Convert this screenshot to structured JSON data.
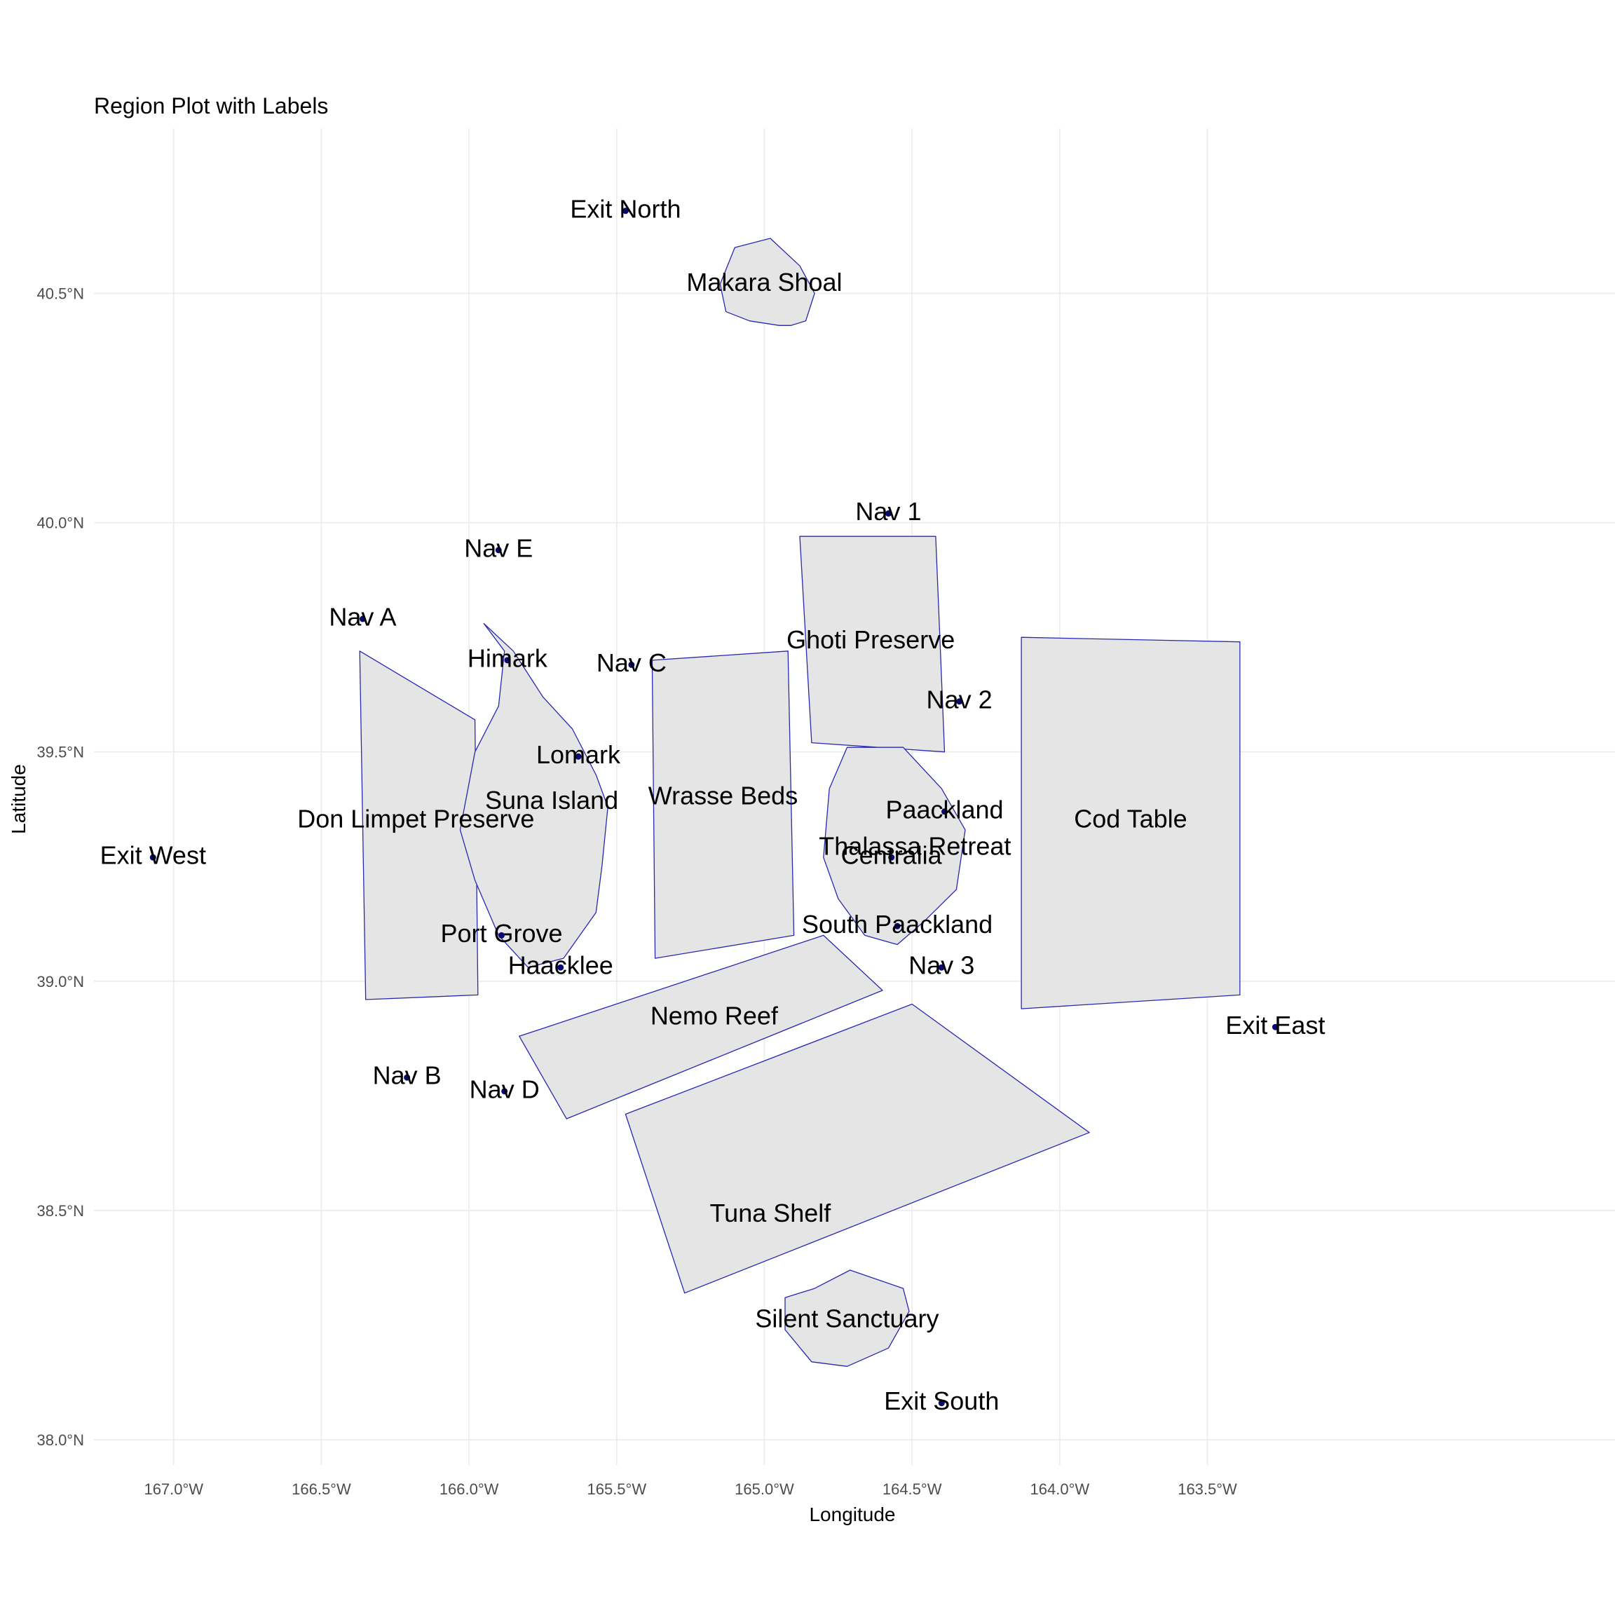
{
  "title": "Region Plot with Labels",
  "colors": {
    "fill": "#e5e5e5",
    "stroke": "#2828b0",
    "point": "#0a0a6e",
    "grid": "#ebebeb"
  },
  "chart_data": {
    "type": "map",
    "xlabel": "Longitude",
    "ylabel": "Latitude",
    "xlim": [
      -167.27,
      -162.12
    ],
    "ylim": [
      37.945,
      40.86
    ],
    "x_ticks": [
      {
        "value": -167.0,
        "label": "167.0°W"
      },
      {
        "value": -166.5,
        "label": "166.5°W"
      },
      {
        "value": -166.0,
        "label": "166.0°W"
      },
      {
        "value": -165.5,
        "label": "165.5°W"
      },
      {
        "value": -165.0,
        "label": "165.0°W"
      },
      {
        "value": -164.5,
        "label": "164.5°W"
      },
      {
        "value": -164.0,
        "label": "164.0°W"
      },
      {
        "value": -163.5,
        "label": "163.5°W"
      }
    ],
    "y_ticks": [
      {
        "value": 38.0,
        "label": "38.0°N"
      },
      {
        "value": 38.5,
        "label": "38.5°N"
      },
      {
        "value": 39.0,
        "label": "39.0°N"
      },
      {
        "value": 39.5,
        "label": "39.5°N"
      },
      {
        "value": 40.0,
        "label": "40.0°N"
      },
      {
        "value": 40.5,
        "label": "40.5°N"
      }
    ],
    "grid": true,
    "legend": "none",
    "regions": [
      {
        "name": "Makara Shoal",
        "coords": [
          [
            -165.1,
            40.6
          ],
          [
            -164.98,
            40.62
          ],
          [
            -164.88,
            40.56
          ],
          [
            -164.83,
            40.5
          ],
          [
            -164.86,
            40.44
          ],
          [
            -164.91,
            40.43
          ],
          [
            -164.95,
            40.43
          ],
          [
            -165.05,
            40.44
          ],
          [
            -165.13,
            40.46
          ],
          [
            -165.15,
            40.52
          ]
        ]
      },
      {
        "name": "Ghoti Preserve",
        "coords": [
          [
            -164.88,
            39.97
          ],
          [
            -164.42,
            39.97
          ],
          [
            -164.39,
            39.5
          ],
          [
            -164.84,
            39.52
          ]
        ]
      },
      {
        "name": "Cod Table",
        "coords": [
          [
            -164.13,
            39.75
          ],
          [
            -163.39,
            39.74
          ],
          [
            -163.39,
            38.97
          ],
          [
            -164.13,
            38.94
          ]
        ]
      },
      {
        "name": "Wrasse Beds",
        "coords": [
          [
            -165.38,
            39.7
          ],
          [
            -164.92,
            39.72
          ],
          [
            -164.9,
            39.1
          ],
          [
            -165.37,
            39.05
          ]
        ]
      },
      {
        "name": "Don Limpet Preserve",
        "coords": [
          [
            -166.37,
            39.72
          ],
          [
            -165.98,
            39.57
          ],
          [
            -165.97,
            38.97
          ],
          [
            -166.35,
            38.96
          ]
        ]
      },
      {
        "name": "Suna Island",
        "coords": [
          [
            -165.95,
            39.78
          ],
          [
            -165.85,
            39.72
          ],
          [
            -165.75,
            39.62
          ],
          [
            -165.65,
            39.55
          ],
          [
            -165.57,
            39.45
          ],
          [
            -165.53,
            39.38
          ],
          [
            -165.55,
            39.25
          ],
          [
            -165.57,
            39.15
          ],
          [
            -165.68,
            39.05
          ],
          [
            -165.8,
            39.03
          ],
          [
            -165.9,
            39.1
          ],
          [
            -165.98,
            39.22
          ],
          [
            -166.03,
            39.33
          ],
          [
            -165.98,
            39.5
          ],
          [
            -165.9,
            39.6
          ],
          [
            -165.88,
            39.72
          ]
        ]
      },
      {
        "name": "Thalassa Retreat",
        "coords": [
          [
            -164.72,
            39.51
          ],
          [
            -164.53,
            39.51
          ],
          [
            -164.4,
            39.42
          ],
          [
            -164.32,
            39.33
          ],
          [
            -164.35,
            39.2
          ],
          [
            -164.46,
            39.13
          ],
          [
            -164.55,
            39.08
          ],
          [
            -164.66,
            39.1
          ],
          [
            -164.75,
            39.18
          ],
          [
            -164.8,
            39.27
          ],
          [
            -164.78,
            39.42
          ]
        ]
      },
      {
        "name": "Nemo Reef",
        "coords": [
          [
            -165.83,
            38.88
          ],
          [
            -164.8,
            39.1
          ],
          [
            -164.6,
            38.98
          ],
          [
            -165.67,
            38.7
          ]
        ]
      },
      {
        "name": "Tuna Shelf",
        "coords": [
          [
            -165.47,
            38.71
          ],
          [
            -164.5,
            38.95
          ],
          [
            -163.9,
            38.67
          ],
          [
            -165.27,
            38.32
          ]
        ]
      },
      {
        "name": "Silent Sanctuary",
        "coords": [
          [
            -164.83,
            38.33
          ],
          [
            -164.71,
            38.37
          ],
          [
            -164.53,
            38.33
          ],
          [
            -164.51,
            38.28
          ],
          [
            -164.58,
            38.2
          ],
          [
            -164.72,
            38.16
          ],
          [
            -164.84,
            38.17
          ],
          [
            -164.93,
            38.24
          ],
          [
            -164.93,
            38.31
          ]
        ]
      }
    ],
    "labels": [
      {
        "text": "Exit North",
        "lon": -165.47,
        "lat": 40.68,
        "point": true
      },
      {
        "text": "Makara Shoal",
        "lon": -165.0,
        "lat": 40.52,
        "point": false
      },
      {
        "text": "Nav 1",
        "lon": -164.58,
        "lat": 40.02,
        "point": true
      },
      {
        "text": "Nav E",
        "lon": -165.9,
        "lat": 39.94,
        "point": true
      },
      {
        "text": "Nav A",
        "lon": -166.36,
        "lat": 39.79,
        "point": true
      },
      {
        "text": "Ghoti Preserve",
        "lon": -164.64,
        "lat": 39.74,
        "point": false
      },
      {
        "text": "Himark",
        "lon": -165.87,
        "lat": 39.7,
        "point": true
      },
      {
        "text": "Nav C",
        "lon": -165.45,
        "lat": 39.69,
        "point": true
      },
      {
        "text": "Nav 2",
        "lon": -164.34,
        "lat": 39.61,
        "point": true
      },
      {
        "text": "Lomark",
        "lon": -165.63,
        "lat": 39.49,
        "point": true
      },
      {
        "text": "Wrasse Beds",
        "lon": -165.14,
        "lat": 39.4,
        "point": false
      },
      {
        "text": "Suna Island",
        "lon": -165.72,
        "lat": 39.39,
        "point": false
      },
      {
        "text": "Paackland",
        "lon": -164.39,
        "lat": 39.37,
        "point": true
      },
      {
        "text": "Cod Table",
        "lon": -163.76,
        "lat": 39.35,
        "point": false
      },
      {
        "text": "Don Limpet Preserve",
        "lon": -166.18,
        "lat": 39.35,
        "point": false
      },
      {
        "text": "Thalassa Retreat",
        "lon": -164.49,
        "lat": 39.29,
        "point": false
      },
      {
        "text": "Centralia",
        "lon": -164.57,
        "lat": 39.27,
        "point": true
      },
      {
        "text": "Exit West",
        "lon": -167.07,
        "lat": 39.27,
        "point": true
      },
      {
        "text": "South Paackland",
        "lon": -164.55,
        "lat": 39.12,
        "point": true
      },
      {
        "text": "Port Grove",
        "lon": -165.89,
        "lat": 39.1,
        "point": true
      },
      {
        "text": "Haacklee",
        "lon": -165.69,
        "lat": 39.03,
        "point": true
      },
      {
        "text": "Nav 3",
        "lon": -164.4,
        "lat": 39.03,
        "point": true
      },
      {
        "text": "Nemo Reef",
        "lon": -165.17,
        "lat": 38.92,
        "point": false
      },
      {
        "text": "Exit East",
        "lon": -163.27,
        "lat": 38.9,
        "point": true
      },
      {
        "text": "Nav B",
        "lon": -166.21,
        "lat": 38.79,
        "point": true
      },
      {
        "text": "Nav D",
        "lon": -165.88,
        "lat": 38.76,
        "point": true
      },
      {
        "text": "Tuna Shelf",
        "lon": -164.98,
        "lat": 38.49,
        "point": false
      },
      {
        "text": "Silent Sanctuary",
        "lon": -164.72,
        "lat": 38.26,
        "point": false
      },
      {
        "text": "Exit South",
        "lon": -164.4,
        "lat": 38.08,
        "point": true
      }
    ]
  }
}
